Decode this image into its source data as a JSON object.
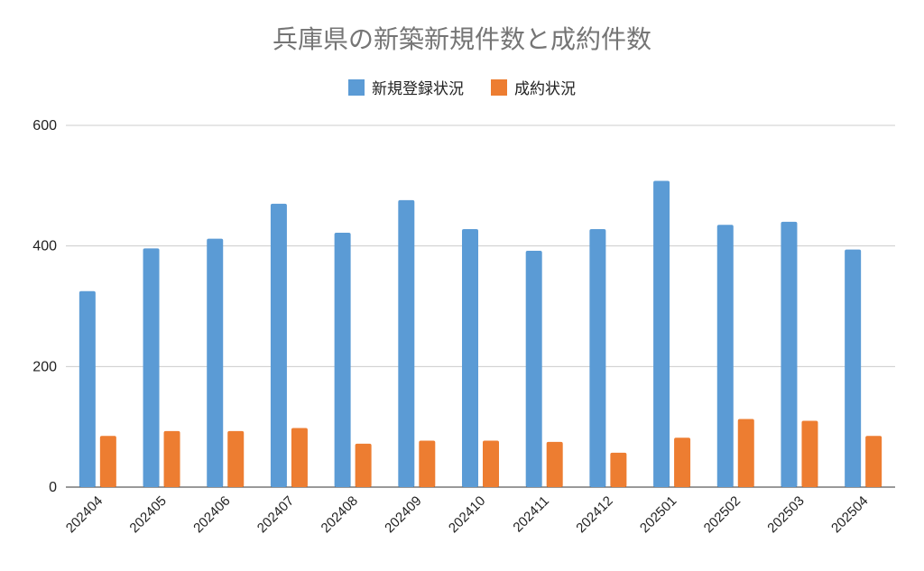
{
  "chart_data": {
    "type": "bar",
    "title": "兵庫県の新築新規件数と成約件数",
    "xlabel": "",
    "ylabel": "",
    "categories": [
      "202404",
      "202405",
      "202406",
      "202407",
      "202408",
      "202409",
      "202410",
      "202411",
      "202412",
      "202501",
      "202502",
      "202503",
      "202504"
    ],
    "series": [
      {
        "name": "新規登録状況",
        "color": "#5b9bd5",
        "values": [
          325,
          396,
          412,
          470,
          422,
          476,
          428,
          392,
          428,
          508,
          435,
          440,
          394
        ]
      },
      {
        "name": "成約状況",
        "color": "#ed7d31",
        "values": [
          85,
          93,
          93,
          98,
          72,
          77,
          77,
          75,
          57,
          82,
          113,
          110,
          85
        ]
      }
    ],
    "yticks": [
      "0",
      "200",
      "400",
      "600"
    ],
    "ylim": [
      0,
      600
    ],
    "grid": true,
    "legend_position": "top"
  }
}
